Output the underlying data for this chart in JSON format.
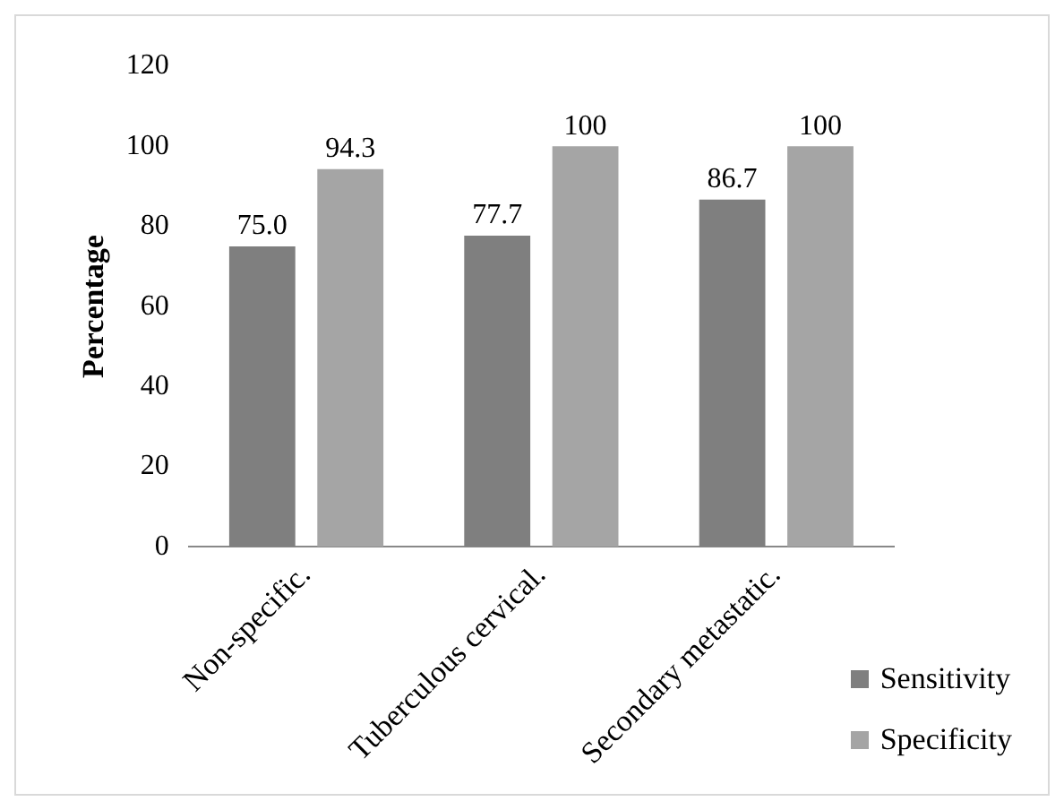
{
  "chart_data": {
    "type": "bar",
    "ylabel": "Percentage",
    "categories": [
      "Non-specific.",
      "Tuberculous cervical.",
      "Secondary metastatic."
    ],
    "series": [
      {
        "name": "Sensitivity",
        "color": "#7f7f7f",
        "values": [
          75.0,
          77.7,
          86.7
        ],
        "value_labels": [
          "75.0",
          "77.7",
          "86.7"
        ]
      },
      {
        "name": "Specificity",
        "color": "#a5a5a5",
        "values": [
          94.3,
          100,
          100
        ],
        "value_labels": [
          "94.3",
          "100",
          "100"
        ]
      }
    ],
    "ylim": [
      0,
      120
    ],
    "yticks": [
      0,
      20,
      40,
      60,
      80,
      100,
      120
    ],
    "grid": false,
    "legend": "bottom right"
  }
}
